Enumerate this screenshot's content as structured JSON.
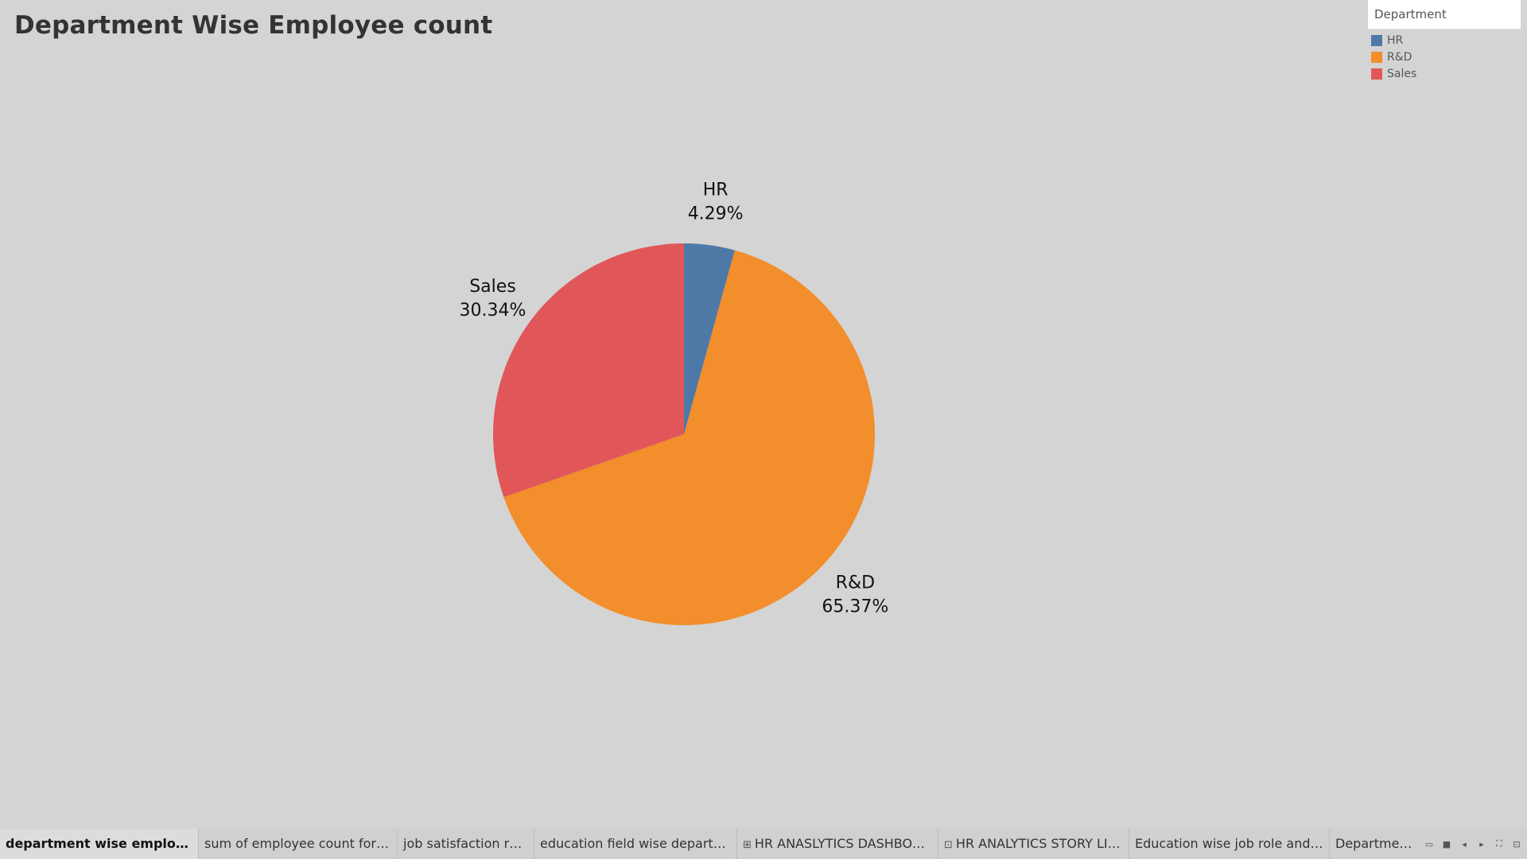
{
  "page": {
    "title": "Department Wise Employee count"
  },
  "legend": {
    "title": "Department",
    "items": [
      {
        "label": "HR",
        "color": "#4e79a7"
      },
      {
        "label": "R&D",
        "color": "#f28e2b"
      },
      {
        "label": "Sales",
        "color": "#e15759"
      }
    ]
  },
  "chart_data": {
    "type": "pie",
    "title": "Department Wise Employee count",
    "categories": [
      "HR",
      "R&D",
      "Sales"
    ],
    "values": [
      4.29,
      65.37,
      30.34
    ],
    "value_labels": [
      "4.29%",
      "65.37%",
      "30.34%"
    ],
    "colors": [
      "#4e79a7",
      "#f28e2b",
      "#e15759"
    ],
    "legend_placement": "top-right"
  },
  "tabs": [
    {
      "label": "department wise employment ...",
      "active": true,
      "icon": ""
    },
    {
      "label": "sum of employee count for each ...",
      "active": false,
      "icon": ""
    },
    {
      "label": "job satisfaction rating",
      "active": false,
      "icon": ""
    },
    {
      "label": "education field wise department",
      "active": false,
      "icon": ""
    },
    {
      "label": "HR ANASLYTICS DASHBOARD",
      "active": false,
      "icon": "dashboard-icon"
    },
    {
      "label": "HR ANALYTICS STORY LINE",
      "active": false,
      "icon": "story-icon"
    },
    {
      "label": "Education wise job role and dep...",
      "active": false,
      "icon": ""
    },
    {
      "label": "Department Wise",
      "active": false,
      "icon": ""
    }
  ],
  "controls": [
    {
      "name": "show-sheet-sorter-icon",
      "glyph": "▭"
    },
    {
      "name": "show-filmstrip-icon",
      "glyph": "■"
    },
    {
      "name": "previous-sheet-icon",
      "glyph": "◂"
    },
    {
      "name": "next-sheet-icon",
      "glyph": "▸"
    },
    {
      "name": "presentation-mode-icon",
      "glyph": "⛶"
    },
    {
      "name": "present-icon",
      "glyph": "⊡"
    }
  ]
}
